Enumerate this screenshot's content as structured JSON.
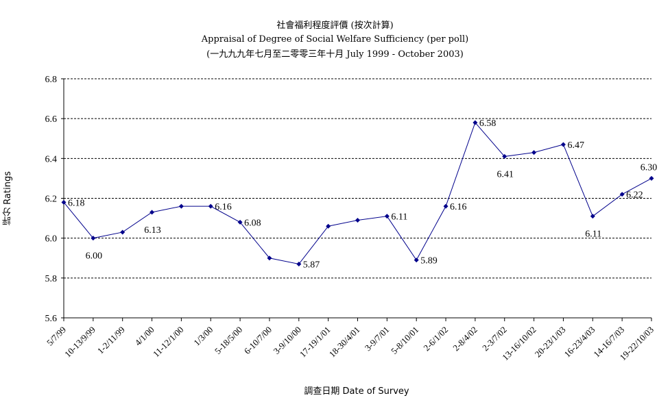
{
  "chart_data": {
    "type": "line",
    "title": "社會福利程度評價 (按次計算)",
    "subtitle": "Appraisal of Degree of Social Welfare Sufficiency (per poll)",
    "subtitle2": "(一九九九年七月至二零零三年十月 July 1999 - October 2003)",
    "xlabel": "調查日期 Date of Survey",
    "ylabel": "評分 Ratings",
    "ylim": [
      5.6,
      6.8
    ],
    "yticks": [
      "5.6",
      "5.8",
      "6.0",
      "6.2",
      "6.4",
      "6.6",
      "6.8"
    ],
    "grid": true,
    "categories": [
      "5/7/99",
      "10-13/9/99",
      "1-2/11/99",
      "4/1/00",
      "11-12/1/00",
      "1/3/00",
      "5-18/5/00",
      "6-10/7/00",
      "3-9/10/00",
      "17-19/1/01",
      "18-30/4/01",
      "3-9/7/01",
      "5-8/10/01",
      "2-6/1/02",
      "2-8/4/02",
      "2-3/7/02",
      "13-16/10/02",
      "20-23/1/03",
      "16-23/4/03",
      "14-16/7/03",
      "19-22/10/03"
    ],
    "values": [
      6.18,
      6.0,
      6.03,
      6.13,
      6.16,
      6.16,
      6.08,
      5.9,
      5.87,
      6.06,
      6.09,
      6.11,
      5.89,
      6.16,
      6.58,
      6.41,
      6.43,
      6.47,
      6.11,
      6.22,
      6.3
    ],
    "labels": [
      {
        "index": 0,
        "text": "6.18"
      },
      {
        "index": 1,
        "text": "6.00"
      },
      {
        "index": 3,
        "text": "6.13"
      },
      {
        "index": 5,
        "text": "6.16"
      },
      {
        "index": 6,
        "text": "6.08"
      },
      {
        "index": 8,
        "text": "5.87"
      },
      {
        "index": 11,
        "text": "6.11"
      },
      {
        "index": 12,
        "text": "5.89"
      },
      {
        "index": 13,
        "text": "6.16"
      },
      {
        "index": 14,
        "text": "6.58"
      },
      {
        "index": 15,
        "text": "6.41"
      },
      {
        "index": 17,
        "text": "6.47"
      },
      {
        "index": 18,
        "text": "6.11"
      },
      {
        "index": 19,
        "text": "6.22"
      },
      {
        "index": 20,
        "text": "6.30"
      }
    ],
    "line_color": "#00008b"
  }
}
